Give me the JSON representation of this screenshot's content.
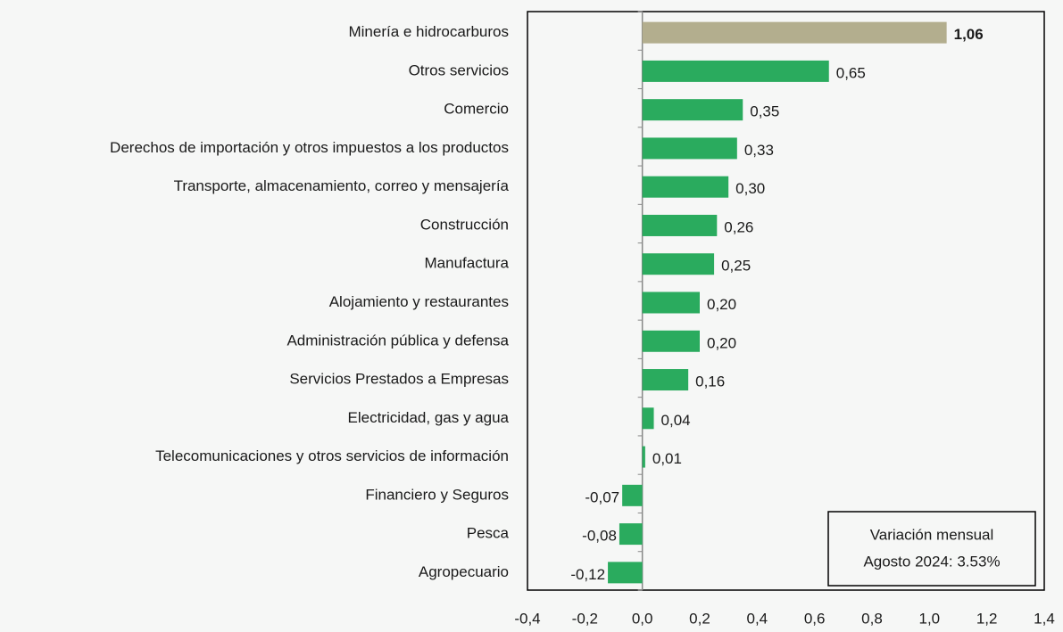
{
  "chart_data": {
    "type": "hbar",
    "categories": [
      "Minería e hidrocarburos",
      "Otros servicios",
      "Comercio",
      "Derechos de importación y otros impuestos a los productos",
      "Transporte, almacenamiento, correo y mensajería",
      "Construcción",
      "Manufactura",
      "Alojamiento y restaurantes",
      "Administración pública y defensa",
      "Servicios Prestados a Empresas",
      "Electricidad, gas y agua",
      "Telecomunicaciones y otros servicios de información",
      "Financiero y Seguros",
      "Pesca",
      "Agropecuario"
    ],
    "values": [
      1.06,
      0.65,
      0.35,
      0.33,
      0.3,
      0.26,
      0.25,
      0.2,
      0.2,
      0.16,
      0.04,
      0.01,
      -0.07,
      -0.08,
      -0.12
    ],
    "value_labels": [
      "1,06",
      "0,65",
      "0,35",
      "0,33",
      "0,30",
      "0,26",
      "0,25",
      "0,20",
      "0,20",
      "0,16",
      "0,04",
      "0,01",
      "-0,07",
      "-0,08",
      "-0,12"
    ],
    "color": "#2aab5e",
    "highlight": 0,
    "highlight_color": "#b3ae8e",
    "xlim": [
      -0.4,
      1.4
    ],
    "xticks": [
      {
        "value": -0.4,
        "label": "-0,4"
      },
      {
        "value": -0.2,
        "label": "-0,2"
      },
      {
        "value": 0,
        "label": "0,0"
      },
      {
        "value": 0.2,
        "label": "0,2"
      },
      {
        "value": 0.4,
        "label": "0,4"
      },
      {
        "value": 0.6,
        "label": "0,6"
      },
      {
        "value": 0.8,
        "label": "0,8"
      },
      {
        "value": 1.0,
        "label": "1,0"
      },
      {
        "value": 1.2,
        "label": "1,2"
      },
      {
        "value": 1.4,
        "label": "1,4"
      }
    ],
    "grid": false,
    "annotation": [
      "Variación mensual",
      "Agosto 2024: 3.53%"
    ]
  }
}
